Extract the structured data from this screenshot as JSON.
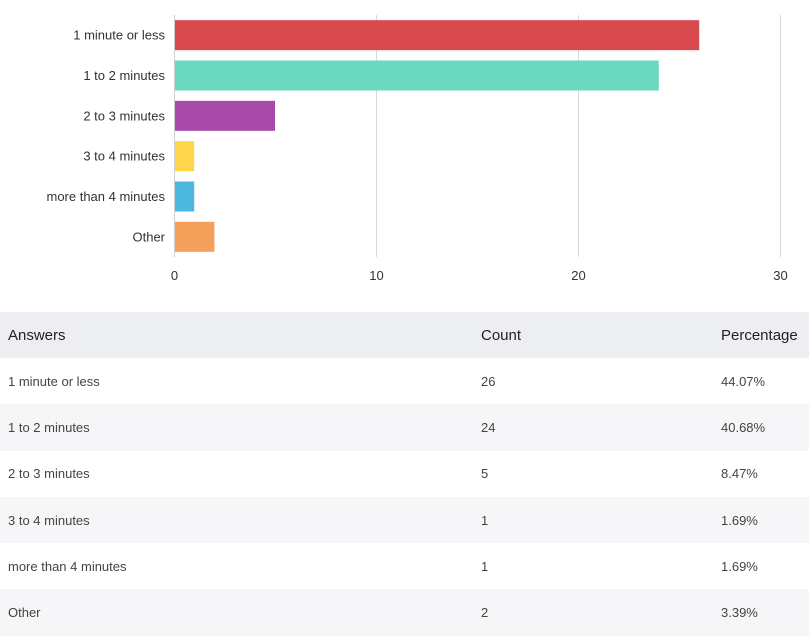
{
  "chart_data": {
    "type": "bar",
    "orientation": "horizontal",
    "categories": [
      "1 minute or less",
      "1 to 2 minutes",
      "2 to 3 minutes",
      "3 to 4 minutes",
      "more than 4 minutes",
      "Other"
    ],
    "values": [
      26,
      24,
      5,
      1,
      1,
      2
    ],
    "colors": [
      "#d94a4f",
      "#6ad9bf",
      "#a84aa8",
      "#fdd64c",
      "#4cb8e0",
      "#f5a05a"
    ],
    "xlim": [
      0,
      30
    ],
    "xticks": [
      0,
      10,
      20,
      30
    ],
    "grid": true
  },
  "table": {
    "headers": {
      "answers": "Answers",
      "count": "Count",
      "percentage": "Percentage"
    },
    "rows": [
      {
        "answer": "1 minute or less",
        "count": "26",
        "percentage": "44.07%"
      },
      {
        "answer": "1 to 2 minutes",
        "count": "24",
        "percentage": "40.68%"
      },
      {
        "answer": "2 to 3 minutes",
        "count": "5",
        "percentage": "8.47%"
      },
      {
        "answer": "3 to 4 minutes",
        "count": "1",
        "percentage": "1.69%"
      },
      {
        "answer": "more than 4 minutes",
        "count": "1",
        "percentage": "1.69%"
      },
      {
        "answer": "Other",
        "count": "2",
        "percentage": "3.39%"
      }
    ]
  }
}
